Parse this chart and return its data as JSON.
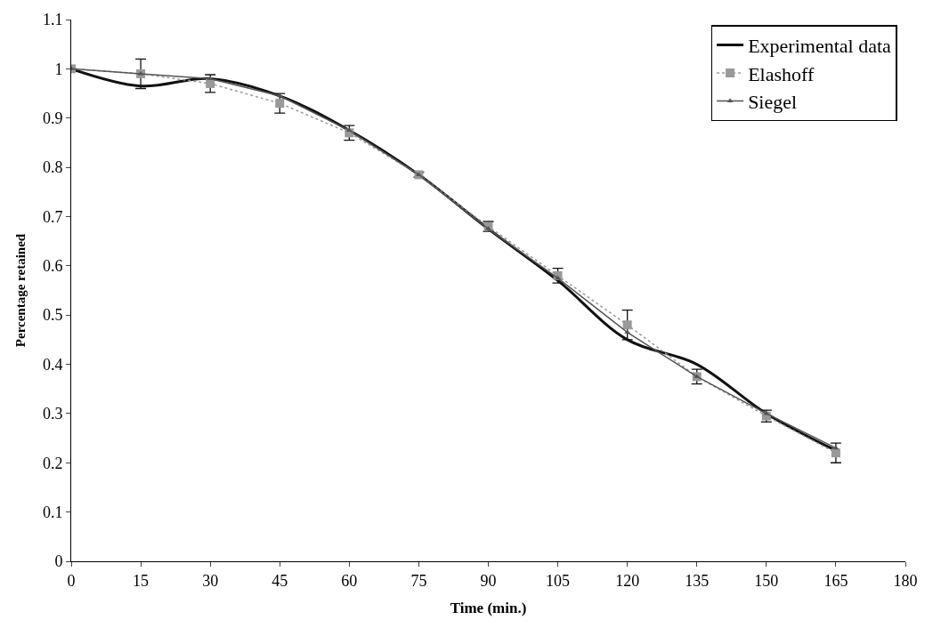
{
  "chart_data": {
    "type": "line",
    "xlabel": "Time (min.)",
    "ylabel": "Percentage retained",
    "x": [
      0,
      15,
      30,
      45,
      60,
      75,
      90,
      105,
      120,
      135,
      150,
      165
    ],
    "xlim": [
      0,
      180
    ],
    "xticks": [
      0,
      15,
      30,
      45,
      60,
      75,
      90,
      105,
      120,
      135,
      150,
      165,
      180
    ],
    "ylim": [
      0,
      1.1
    ],
    "yticks": [
      0,
      0.1,
      0.2,
      0.3,
      0.4,
      0.5,
      0.6,
      0.7,
      0.8,
      0.9,
      1,
      1.1
    ],
    "legend": "top right",
    "series": [
      {
        "name": "Experimental data",
        "color": "#111111",
        "marker": "none",
        "line_style": "solid",
        "values": [
          1.0,
          0.965,
          0.98,
          0.945,
          0.875,
          0.785,
          0.675,
          0.57,
          0.45,
          0.4,
          0.3,
          0.225
        ]
      },
      {
        "name": "Elashoff",
        "color": "#999999",
        "marker": "square",
        "line_style": "dotted",
        "values": [
          1.0,
          0.99,
          0.97,
          0.93,
          0.87,
          0.785,
          0.68,
          0.58,
          0.48,
          0.375,
          0.295,
          0.22
        ],
        "errors": [
          null,
          0.03,
          0.018,
          0.02,
          0.015,
          0.005,
          0.01,
          0.015,
          0.03,
          0.015,
          0.012,
          0.02
        ]
      },
      {
        "name": "Siegel",
        "color": "#555555",
        "marker": "triangle",
        "line_style": "solid",
        "values": [
          1.0,
          0.99,
          0.98,
          0.945,
          0.875,
          0.785,
          0.675,
          0.575,
          0.465,
          0.375,
          0.3,
          0.23
        ]
      }
    ]
  }
}
